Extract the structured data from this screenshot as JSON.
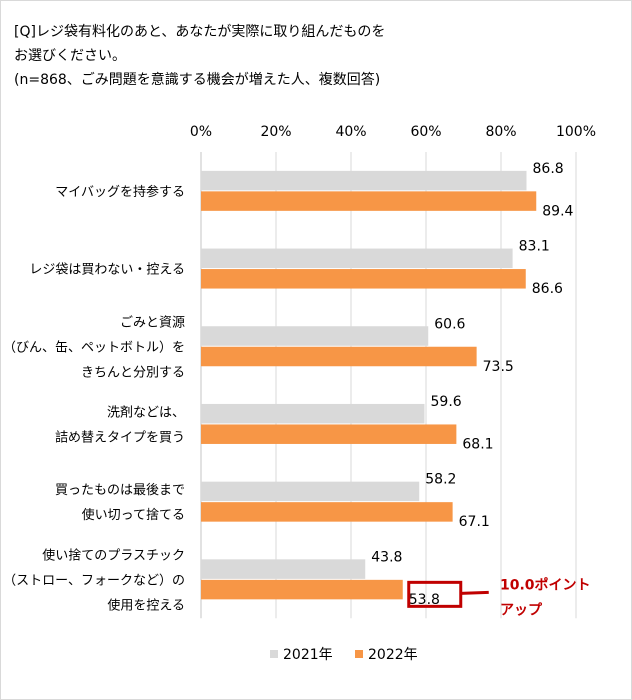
{
  "title_lines": [
    "[Q]レジ袋有料化のあと、あなたが実際に取り組んだものを",
    "お選びください。",
    "(n=868、ごみ問題を意識する機会が増えた人、複数回答)"
  ],
  "chart_data": {
    "type": "bar",
    "orientation": "horizontal",
    "categories": [
      [
        "マイバッグを持参する"
      ],
      [
        "レジ袋は買わない・控える"
      ],
      [
        "ごみと資源",
        "（びん、缶、ペットボトル）を",
        "きちんと分別する"
      ],
      [
        "洗剤などは、",
        "詰め替えタイプを買う"
      ],
      [
        "買ったものは最後まで",
        "使い切って捨てる"
      ],
      [
        "使い捨てのプラスチック",
        "（ストロー、フォークなど）の",
        "使用を控える"
      ]
    ],
    "series": [
      {
        "name": "2021年",
        "color": "#d9d9d9",
        "values": [
          86.8,
          83.1,
          60.6,
          59.6,
          58.2,
          43.8
        ]
      },
      {
        "name": "2022年",
        "color": "#f79646",
        "values": [
          89.4,
          86.6,
          73.5,
          68.1,
          67.1,
          53.8
        ]
      }
    ],
    "xlim": [
      0,
      100
    ],
    "xticks": [
      "0%",
      "20%",
      "40%",
      "60%",
      "80%",
      "100%"
    ],
    "grid": true,
    "legend": "bottom",
    "annotation": {
      "lines": [
        "10.0ポイント",
        "アップ"
      ],
      "color": "#c00000",
      "target_category_index": 5
    }
  }
}
